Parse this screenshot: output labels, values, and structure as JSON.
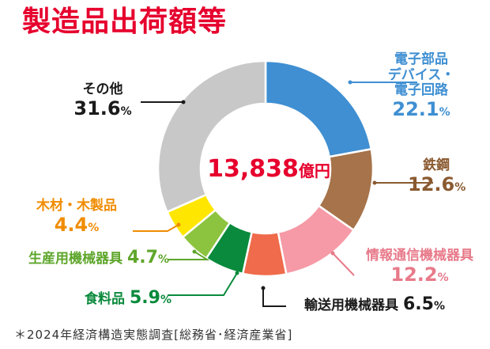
{
  "title": "製造品出荷額等",
  "footnote": "＊2024年経済構造実態調査[総務省･経済産業省]",
  "chart_data": {
    "type": "pie",
    "donut": true,
    "center_label": {
      "value": "13,838",
      "unit": "億円"
    },
    "slices": [
      {
        "name": "電子部品\nデバイス・\n電子回路",
        "value": 22.1,
        "pct_label": "22.1",
        "color": "#3f8fd2",
        "label_color": "#3f8fd2"
      },
      {
        "name": "鉄鋼",
        "value": 12.6,
        "pct_label": "12.6",
        "color": "#a6734a",
        "label_color": "#8a5a30"
      },
      {
        "name": "情報通信機械器具",
        "value": 12.2,
        "pct_label": "12.2",
        "color": "#f59aa6",
        "label_color": "#e87a8a"
      },
      {
        "name": "輸送用機械器具",
        "value": 6.5,
        "pct_label": "6.5",
        "color": "#ef6b4b",
        "label_color": "#1a1a1a"
      },
      {
        "name": "食料品",
        "value": 5.9,
        "pct_label": "5.9",
        "color": "#0a8a3c",
        "label_color": "#0a8a3c"
      },
      {
        "name": "生産用機械器具",
        "value": 4.7,
        "pct_label": "4.7",
        "color": "#8cc43f",
        "label_color": "#5ea62b"
      },
      {
        "name": "木材・木製品",
        "value": 4.4,
        "pct_label": "4.4",
        "color": "#ffe600",
        "label_color": "#f08c00"
      },
      {
        "name": "その他",
        "value": 31.6,
        "pct_label": "31.6",
        "color": "#c8c8c8",
        "label_color": "#1a1a1a"
      }
    ],
    "percent_unit": "%"
  }
}
